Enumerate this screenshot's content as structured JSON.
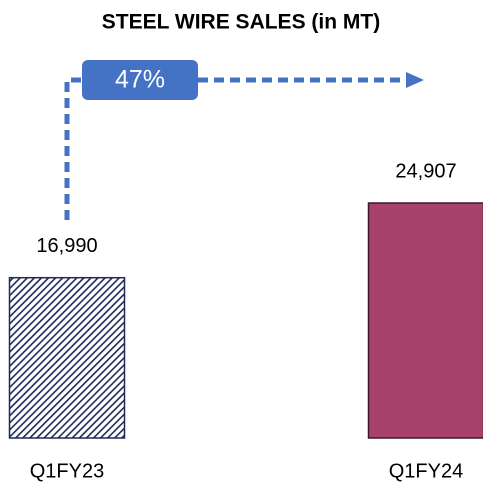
{
  "chart_data": {
    "type": "bar",
    "title": "STEEL WIRE SALES (in MT)",
    "categories": [
      "Q1FY23",
      "Q1FY24"
    ],
    "values": [
      16990,
      24907
    ],
    "value_labels": [
      "16,990",
      "24,907"
    ],
    "colors": [
      "#1f2a5a",
      "#a8426a"
    ],
    "patterns": [
      "hatch",
      "solid"
    ],
    "annotation": "47%",
    "annotation_color": "#4472c4"
  }
}
